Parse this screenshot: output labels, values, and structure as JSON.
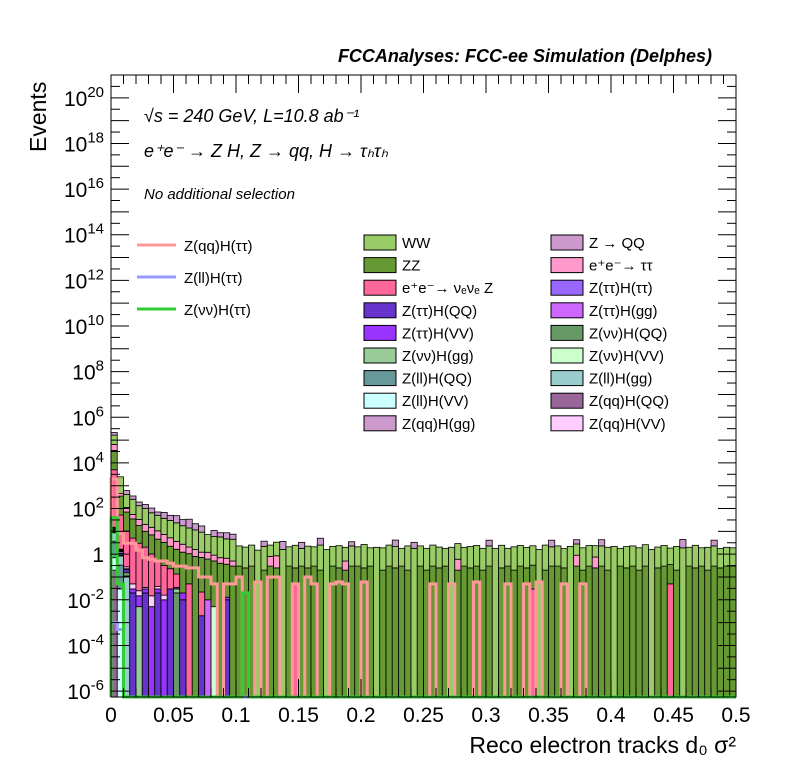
{
  "chart_data": {
    "type": "bar",
    "subtype": "stacked histogram with overlaid step lines",
    "title": "FCCAnalyses: FCC-ee Simulation (Delphes)",
    "annotations": [
      "√s = 240 GeV, L=10.8 ab⁻¹",
      "e⁺e⁻ → Z H, Z → qq, H → τₕτₕ",
      "No additional selection"
    ],
    "xlabel": "Reco electron tracks d₀ σ²",
    "ylabel": "Events",
    "xlim": [
      0,
      0.5
    ],
    "ylim": [
      5.5e-07,
      1e+21
    ],
    "yscale": "log",
    "bin_width": 0.005,
    "x_tick_labels": [
      "0",
      "0.05",
      "0.1",
      "0.15",
      "0.2",
      "0.25",
      "0.3",
      "0.35",
      "0.4",
      "0.45",
      "0.5"
    ],
    "y_tick_labels": [
      {
        "base": "10",
        "exp": "-6"
      },
      {
        "base": "10",
        "exp": "-4"
      },
      {
        "base": "10",
        "exp": "-2"
      },
      {
        "base": "1",
        "exp": ""
      },
      {
        "base": "10",
        "exp": "2"
      },
      {
        "base": "10",
        "exp": "4"
      },
      {
        "base": "10",
        "exp": "6"
      },
      {
        "base": "10",
        "exp": "8"
      },
      {
        "base": "10",
        "exp": "10"
      },
      {
        "base": "10",
        "exp": "12"
      },
      {
        "base": "10",
        "exp": "14"
      },
      {
        "base": "10",
        "exp": "16"
      },
      {
        "base": "10",
        "exp": "18"
      },
      {
        "base": "10",
        "exp": "20"
      }
    ],
    "grid": false,
    "legend_placement": "upper area, inside plot",
    "stack_order": [
      "Z(qq)H(QQ)",
      "Z(ll)H(VV)",
      "Z(ll)H(QQ)",
      "Z(ll)H(gg)",
      "Z(νν)H(VV)",
      "Z(νν)H(QQ)",
      "Z(νν)H(gg)",
      "Z(ττ)H(ττ)",
      "Z(ττ)H(gg)",
      "Z(ττ)H(QQ)",
      "Z(ττ)H(VV)",
      "Z(qq)H(VV)",
      "Z(qq)H(gg)",
      "e⁺e⁻→ νₑνₑ Z",
      "ZZ",
      "e⁺e⁻→ ττ",
      "WW",
      "Z → QQ"
    ],
    "stacked_series": [
      {
        "name": "WW",
        "color": "#99cc66",
        "values": [
          100000,
          2000,
          300,
          200,
          100,
          80,
          50,
          40,
          30,
          25,
          20,
          15,
          12,
          10,
          8,
          6,
          5,
          5,
          4,
          4,
          2,
          1.8,
          2.2,
          1.5,
          2,
          1.7,
          2.5,
          1.6,
          1.8,
          2.2,
          1.5,
          2,
          1.8,
          2.3,
          1.6,
          1.9,
          2.1,
          1.5,
          2,
          1.8,
          2.4,
          1.6,
          2,
          1.7,
          2.2,
          1.9,
          1.5,
          2.1,
          1.8,
          2,
          1.6,
          2.2,
          1.8,
          1.5,
          2,
          2.3,
          1.7,
          1.9,
          2.1,
          1.6,
          2,
          1.8,
          2.2,
          1.5,
          1.9,
          2.1,
          1.7,
          2,
          1.6,
          2.3,
          1.8,
          2,
          1.5,
          2.2,
          1.9,
          1.7,
          2.1,
          1.6,
          2,
          1.8,
          2.2,
          1.5,
          1.9,
          2,
          1.7,
          2.3,
          1.6,
          1.8,
          2.1,
          1.5,
          2,
          1.9,
          1.7,
          2.2,
          1.6,
          1.8,
          2,
          1.5,
          1.7,
          1.6
        ]
      },
      {
        "name": "Z → QQ",
        "color": "#cc99cc",
        "values": [
          50000,
          0,
          200,
          100,
          60,
          50,
          40,
          20,
          30,
          20,
          25,
          15,
          20,
          10,
          8,
          0,
          5,
          3,
          4,
          3,
          0,
          0,
          0,
          0,
          1.5,
          0,
          0,
          2,
          0,
          0,
          1.5,
          0,
          0,
          2.5,
          0,
          0,
          0,
          0,
          1.2,
          0,
          0,
          0,
          0,
          0,
          0,
          2,
          0,
          0,
          1.5,
          0,
          0,
          0,
          0,
          0,
          0,
          0,
          0,
          0,
          0,
          0,
          1.8,
          0,
          0,
          0,
          0,
          0,
          0,
          0,
          0,
          0,
          2,
          0,
          0,
          0,
          1.5,
          0,
          0,
          0,
          2,
          0,
          0,
          0,
          0,
          0,
          0,
          0,
          0,
          0,
          0,
          0,
          0,
          2.5,
          0,
          0,
          0,
          0,
          1.8,
          0,
          0,
          0
        ]
      },
      {
        "name": "ZZ",
        "color": "#669933",
        "values": [
          30000,
          300,
          60,
          30,
          15,
          8,
          6,
          4,
          3,
          2,
          1.5,
          1.2,
          1,
          0.8,
          0.7,
          0.6,
          0.5,
          0.4,
          0.35,
          0.3,
          0.3,
          0.25,
          0.3,
          0,
          0.2,
          0.3,
          0.25,
          0,
          0.3,
          0.2,
          0.3,
          0.25,
          0.3,
          0.2,
          0,
          0.3,
          0.25,
          0.2,
          0.3,
          0.3,
          0.25,
          0.3,
          0,
          0.2,
          0.3,
          0.25,
          0.3,
          0.2,
          0,
          0.3,
          0.2,
          0.3,
          0.25,
          0.3,
          0,
          0.2,
          0.3,
          0.25,
          0.3,
          0.2,
          0.3,
          0,
          0.25,
          0.3,
          0.2,
          0.3,
          0.25,
          0.3,
          0,
          0.2,
          0.3,
          0.3,
          0.25,
          0,
          0.3,
          0.2,
          0.3,
          0.25,
          0.3,
          0.2,
          0,
          0.3,
          0.25,
          0.3,
          0.2,
          0.3,
          0,
          0.25,
          0.3,
          0.3,
          0.2,
          0,
          0.3,
          0.25,
          0.3,
          0.2,
          0.3,
          0.25,
          0.3,
          0.3
        ]
      },
      {
        "name": "e⁺e⁻→ ττ",
        "color": "#ff99cc",
        "values": [
          30000,
          100,
          40,
          20,
          15,
          10,
          8,
          6,
          4,
          3,
          2,
          1.5,
          1,
          0.8,
          0.5,
          0.6,
          0.4,
          0.3,
          0.3,
          0.2,
          0,
          0,
          0,
          0,
          0,
          0.5,
          0.6,
          0,
          0,
          0,
          0,
          0,
          0,
          0,
          0,
          0,
          0,
          0.3,
          0,
          0,
          0,
          0,
          0,
          0,
          0,
          0,
          0,
          0,
          0,
          0,
          0,
          0,
          0,
          0,
          0,
          0.4,
          0,
          0,
          0,
          0,
          0,
          0,
          0,
          0,
          0,
          0,
          0,
          0,
          0,
          0,
          0,
          0,
          0,
          0,
          0.6,
          0,
          0,
          0.5,
          0,
          0,
          0,
          0,
          0,
          0,
          0,
          0,
          0,
          0,
          0,
          0,
          0,
          0,
          0,
          0,
          0,
          0,
          0,
          0,
          0,
          0
        ]
      },
      {
        "name": "e⁺e⁻→ νₑνₑ Z",
        "color": "#ff6699",
        "values": [
          5000,
          50,
          10,
          5,
          3,
          2,
          1,
          0.5,
          0.3,
          0.2,
          0.1,
          0,
          0.05,
          0,
          0.02,
          0,
          0,
          0,
          0,
          0,
          0,
          0,
          0,
          0,
          0,
          0,
          0,
          0,
          0,
          0.05,
          0,
          0,
          0,
          0,
          0,
          0,
          0,
          0,
          0,
          0,
          0,
          0,
          0,
          0,
          0,
          0,
          0,
          0,
          0,
          0,
          0,
          0,
          0,
          0,
          0,
          0,
          0,
          0,
          0,
          0,
          0,
          0,
          0,
          0,
          0,
          0,
          0,
          0.03,
          0,
          0,
          0,
          0,
          0,
          0,
          0,
          0,
          0,
          0,
          0,
          0,
          0,
          0,
          0,
          0,
          0,
          0,
          0,
          0,
          0,
          0.05
        ]
      },
      {
        "name": "Z(ττ)H(ττ)",
        "color": "#9966ff",
        "values": [
          1,
          0.2
        ]
      },
      {
        "name": "Z(ττ)H(QQ)",
        "color": "#6633cc",
        "values": [
          0.5,
          0.1,
          0.05,
          0.02,
          0,
          0.02,
          0,
          0.02,
          0,
          0.03,
          0,
          0.01,
          0,
          0,
          0.002,
          0,
          0,
          0,
          0.01,
          0
        ]
      },
      {
        "name": "Z(ττ)H(gg)",
        "color": "#cc66ff",
        "values": [
          0.3,
          0.05,
          0,
          0,
          0,
          0,
          0,
          0,
          0,
          0,
          0,
          0,
          0,
          0,
          0,
          0.01
        ]
      },
      {
        "name": "Z(ττ)H(VV)",
        "color": "#9933ff",
        "values": [
          0.5,
          0.05,
          0.02,
          0.01,
          0.01,
          0.01,
          0.005,
          0.01,
          0.01,
          0,
          0.005,
          0.01,
          0,
          0,
          0,
          0,
          0,
          0,
          0.003
        ]
      },
      {
        "name": "Z(νν)H(QQ)",
        "color": "#669966",
        "values": [
          2,
          0.2,
          0.05,
          0,
          0,
          0,
          0,
          0,
          0,
          0,
          0.02
        ]
      },
      {
        "name": "Z(νν)H(gg)",
        "color": "#99cc99",
        "values": [
          0.3,
          0.02,
          0,
          0,
          0.005,
          0,
          0,
          0,
          0,
          0,
          0.01
        ]
      },
      {
        "name": "Z(νν)H(VV)",
        "color": "#ccffcc",
        "values": [
          0.3,
          0.05,
          0.01,
          0,
          0,
          0,
          0,
          0,
          0,
          0,
          0,
          0,
          0,
          0,
          0,
          0,
          0.005
        ]
      },
      {
        "name": "Z(ll)H(QQ)",
        "color": "#669999",
        "values": [
          3,
          0.3
        ]
      },
      {
        "name": "Z(ll)H(gg)",
        "color": "#99cccc",
        "values": [
          5,
          0.5,
          0.1
        ]
      },
      {
        "name": "Z(ll)H(VV)",
        "color": "#ccffff",
        "values": [
          0.5,
          0.03
        ]
      },
      {
        "name": "Z(qq)H(QQ)",
        "color": "#996699",
        "values": [
          0.2
        ]
      },
      {
        "name": "Z(qq)H(gg)",
        "color": "#cc99cc",
        "values": [
          0.5,
          0.05
        ]
      },
      {
        "name": "Z(qq)H(VV)",
        "color": "#ffccff",
        "values": [
          1,
          0.1,
          0.05,
          0.02,
          0.01,
          0.005,
          0.01,
          0.008,
          0.006
        ]
      }
    ],
    "line_series": [
      {
        "name": "Z(qq)H(ττ)",
        "color": "#ff9999",
        "values": [
          2000,
          8,
          3,
          3,
          1.5,
          0.7,
          0.6,
          0.5,
          0.5,
          0.4,
          0.3,
          0.3,
          0.25,
          0.25,
          0.1,
          0.1,
          0.05,
          0,
          0.05,
          0.05,
          0.1,
          0,
          0,
          0.06,
          0,
          0.1,
          0.1,
          0,
          0,
          0.05,
          0,
          0.1,
          0.05,
          0,
          0,
          0.05,
          0.06,
          0.05,
          0,
          0,
          0.06,
          0,
          0,
          0,
          0,
          0,
          0,
          0,
          0,
          0,
          0,
          0.05,
          0,
          0,
          0.05,
          0,
          0,
          0,
          0.06,
          0,
          0,
          0,
          0,
          0.05,
          0,
          0,
          0.05,
          0,
          0.06,
          0,
          0,
          0,
          0.05,
          0,
          0,
          0.05
        ]
      },
      {
        "name": "Z(ll)H(ττ)",
        "color": "#9999ff",
        "values": [
          0.001,
          0.0005
        ]
      },
      {
        "name": "Z(νν)H(ττ)",
        "color": "#33cc33",
        "values": [
          40,
          0.05,
          0,
          0,
          0,
          0,
          0,
          0,
          0,
          0,
          0,
          0,
          0,
          0,
          0,
          0,
          0,
          0,
          0,
          0,
          0,
          0.02
        ]
      }
    ],
    "legend_left": [
      "Z(qq)H(ττ)",
      "Z(ll)H(ττ)",
      "Z(νν)H(ττ)"
    ],
    "legend_right": [
      [
        "WW",
        "Z → QQ"
      ],
      [
        "ZZ",
        "e⁺e⁻→ ττ"
      ],
      [
        "e⁺e⁻→ νₑνₑ Z",
        "Z(ττ)H(ττ)"
      ],
      [
        "Z(ττ)H(QQ)",
        "Z(ττ)H(gg)"
      ],
      [
        "Z(ττ)H(VV)",
        "Z(νν)H(QQ)"
      ],
      [
        "Z(νν)H(gg)",
        "Z(νν)H(VV)"
      ],
      [
        "Z(ll)H(QQ)",
        "Z(ll)H(gg)"
      ],
      [
        "Z(ll)H(VV)",
        "Z(qq)H(QQ)"
      ],
      [
        "Z(qq)H(gg)",
        "Z(qq)H(VV)"
      ]
    ]
  }
}
